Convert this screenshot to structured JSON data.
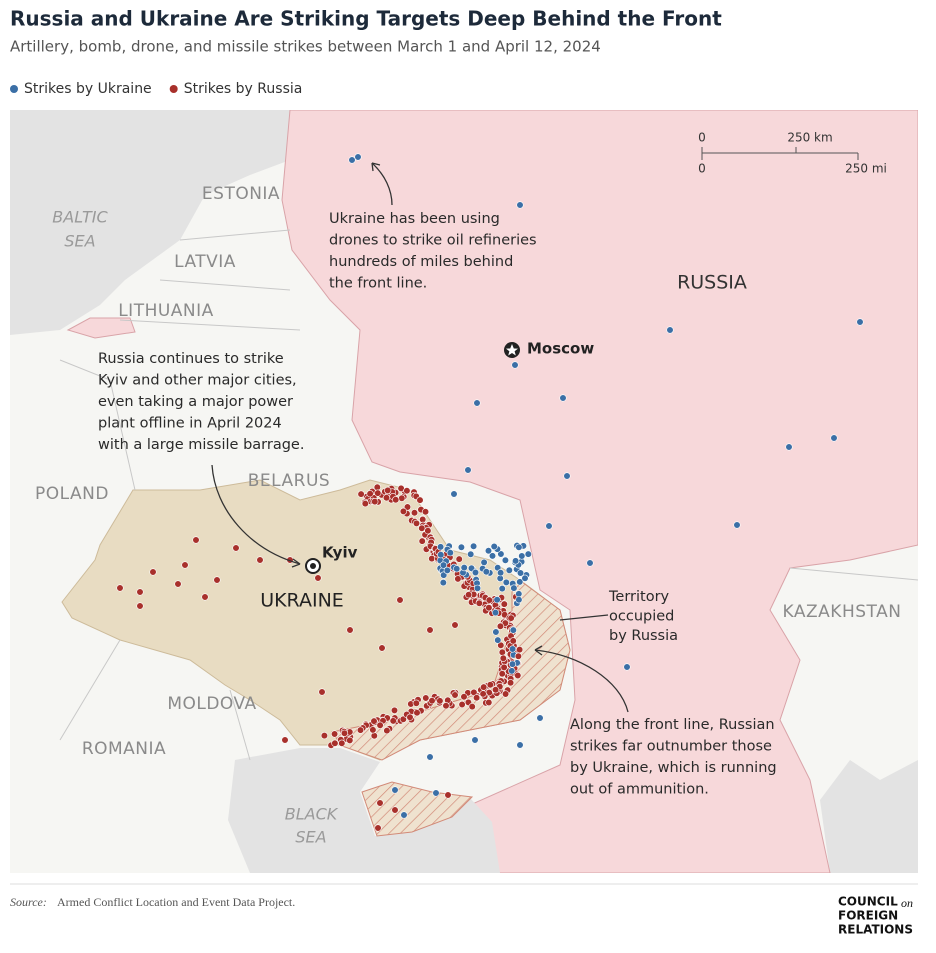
{
  "header": {
    "title": "Russia and Ukraine Are Striking Targets Deep Behind the Front",
    "subtitle": "Artillery, bomb, drone, and missile strikes between March 1 and April 12, 2024"
  },
  "legend": [
    {
      "label": "Strikes by Ukraine",
      "color": "#3b6fa6"
    },
    {
      "label": "Strikes by Russia",
      "color": "#a8302b"
    }
  ],
  "scale": {
    "km": [
      "0",
      "250 km"
    ],
    "mi": [
      "0",
      "250 mi"
    ]
  },
  "places": {
    "russia": "RUSSIA",
    "ukraine": "UKRAINE",
    "estonia": "ESTONIA",
    "latvia": "LATVIA",
    "lithuania": "LITHUANIA",
    "belarus": "BELARUS",
    "poland": "POLAND",
    "moldova": "MOLDOVA",
    "romania": "ROMANIA",
    "kazakhstan": "KAZAKHSTAN",
    "baltic_sea": [
      "BALTIC",
      "SEA"
    ],
    "black_sea": [
      "BLACK",
      "SEA"
    ],
    "moscow": "Moscow",
    "kyiv": "Kyiv"
  },
  "annotations": [
    {
      "lines": [
        "Ukraine has been using",
        "drones to strike oil refineries",
        "hundreds of miles behind",
        "the front line."
      ]
    },
    {
      "lines": [
        "Russia continues to strike",
        "Kyiv and other major cities,",
        "even taking a major power",
        "plant offline in April 2024",
        "with a large missile barrage."
      ]
    },
    {
      "lines": [
        "Territory",
        "occupied",
        "by Russia"
      ]
    },
    {
      "lines": [
        "Along the front line, Russian",
        "strikes far outnumber those",
        "by Ukraine, which is running",
        "out of ammunition."
      ]
    }
  ],
  "source": {
    "prefix": "Source:",
    "text": "Armed Conflict Location and Event Data Project."
  },
  "logo": {
    "line1": "COUNCIL",
    "on": "on",
    "line2": "FOREIGN",
    "line3": "RELATIONS"
  }
}
